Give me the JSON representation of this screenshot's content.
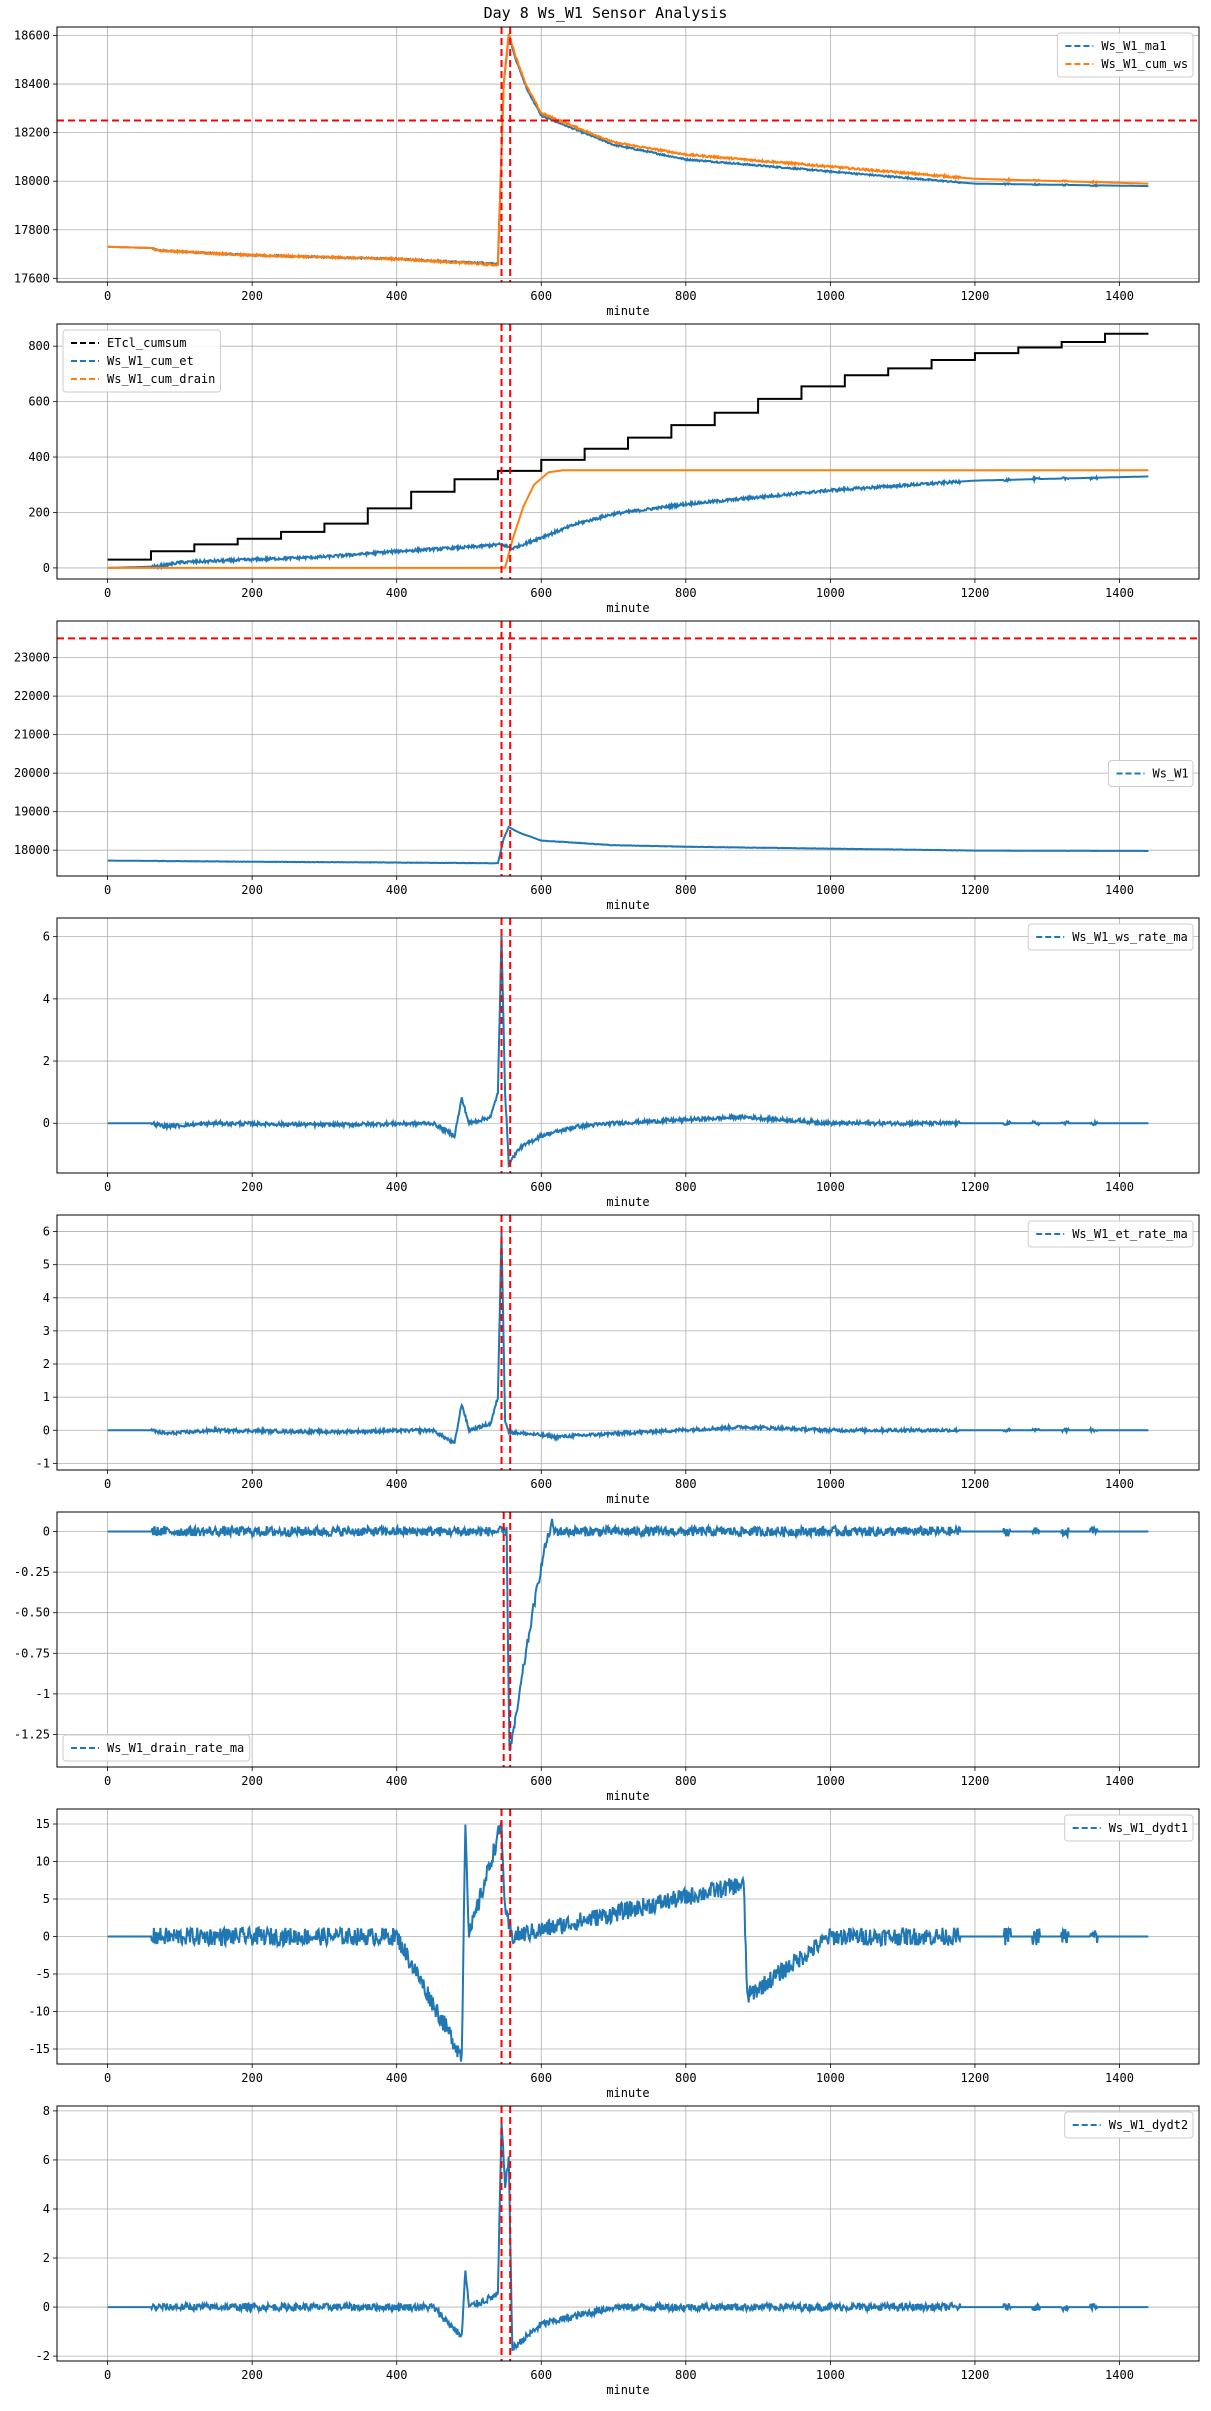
{
  "figure": {
    "title": "Day 8 Ws_W1 Sensor Analysis"
  },
  "colors": {
    "blue": "#1f77b4",
    "orange": "#ff7f0e",
    "black": "#000000",
    "red": "#ff0000",
    "grid": "#b0b0b0"
  },
  "chart_data": [
    {
      "type": "line",
      "xlabel": "minute",
      "xlim": [
        -70,
        1510
      ],
      "ylim": [
        17585,
        18635
      ],
      "xticks": [
        0,
        200,
        400,
        600,
        800,
        1000,
        1200,
        1400
      ],
      "yticks": [
        17600,
        17800,
        18000,
        18200,
        18400,
        18600
      ],
      "legend_position": "top-right",
      "grid": true,
      "vlines": [
        545,
        557
      ],
      "hlines": [
        18250
      ],
      "series": [
        {
          "name": "Ws_W1_ma1",
          "color": "blue",
          "noise": 3,
          "points": [
            [
              0,
              17730
            ],
            [
              60,
              17725
            ],
            [
              70,
              17715
            ],
            [
              200,
              17695
            ],
            [
              400,
              17680
            ],
            [
              540,
              17660
            ],
            [
              548,
              18400
            ],
            [
              555,
              18600
            ],
            [
              565,
              18500
            ],
            [
              580,
              18380
            ],
            [
              600,
              18270
            ],
            [
              700,
              18150
            ],
            [
              800,
              18090
            ],
            [
              1000,
              18040
            ],
            [
              1200,
              17990
            ],
            [
              1440,
              17980
            ]
          ]
        },
        {
          "name": "Ws_W1_cum_ws",
          "color": "orange",
          "noise": 4,
          "points": [
            [
              0,
              17730
            ],
            [
              60,
              17725
            ],
            [
              70,
              17715
            ],
            [
              200,
              17695
            ],
            [
              400,
              17680
            ],
            [
              540,
              17655
            ],
            [
              548,
              18400
            ],
            [
              555,
              18610
            ],
            [
              565,
              18510
            ],
            [
              580,
              18390
            ],
            [
              600,
              18280
            ],
            [
              700,
              18160
            ],
            [
              800,
              18110
            ],
            [
              1000,
              18060
            ],
            [
              1200,
              18010
            ],
            [
              1440,
              17990
            ]
          ]
        }
      ]
    },
    {
      "type": "line",
      "xlabel": "minute",
      "xlim": [
        -70,
        1510
      ],
      "ylim": [
        -40,
        880
      ],
      "xticks": [
        0,
        200,
        400,
        600,
        800,
        1000,
        1200,
        1400
      ],
      "yticks": [
        0,
        200,
        400,
        600,
        800
      ],
      "legend_position": "top-left",
      "grid": true,
      "vlines": [
        545,
        557
      ],
      "hlines": [],
      "series": [
        {
          "name": "ETcl_cumsum",
          "color": "black",
          "step": true,
          "noise": 0,
          "points": [
            [
              0,
              30
            ],
            [
              60,
              60
            ],
            [
              120,
              85
            ],
            [
              180,
              105
            ],
            [
              240,
              130
            ],
            [
              300,
              160
            ],
            [
              360,
              215
            ],
            [
              420,
              275
            ],
            [
              480,
              320
            ],
            [
              540,
              350
            ],
            [
              600,
              390
            ],
            [
              660,
              430
            ],
            [
              720,
              470
            ],
            [
              780,
              515
            ],
            [
              840,
              560
            ],
            [
              900,
              610
            ],
            [
              960,
              655
            ],
            [
              1020,
              695
            ],
            [
              1080,
              720
            ],
            [
              1140,
              750
            ],
            [
              1200,
              775
            ],
            [
              1260,
              795
            ],
            [
              1320,
              815
            ],
            [
              1380,
              845
            ],
            [
              1440,
              845
            ]
          ]
        },
        {
          "name": "Ws_W1_cum_et",
          "color": "blue",
          "noise": 5,
          "points": [
            [
              0,
              0
            ],
            [
              70,
              5
            ],
            [
              100,
              20
            ],
            [
              200,
              30
            ],
            [
              300,
              40
            ],
            [
              400,
              60
            ],
            [
              500,
              75
            ],
            [
              545,
              85
            ],
            [
              560,
              70
            ],
            [
              600,
              110
            ],
            [
              650,
              160
            ],
            [
              700,
              195
            ],
            [
              800,
              230
            ],
            [
              1000,
              280
            ],
            [
              1200,
              315
            ],
            [
              1440,
              330
            ]
          ]
        },
        {
          "name": "Ws_W1_cum_drain",
          "color": "orange",
          "noise": 0,
          "points": [
            [
              0,
              0
            ],
            [
              550,
              0
            ],
            [
              560,
              100
            ],
            [
              575,
              220
            ],
            [
              590,
              300
            ],
            [
              610,
              345
            ],
            [
              630,
              352
            ],
            [
              1440,
              352
            ]
          ]
        }
      ]
    },
    {
      "type": "line",
      "xlabel": "minute",
      "xlim": [
        -70,
        1510
      ],
      "ylim": [
        17330,
        23950
      ],
      "xticks": [
        0,
        200,
        400,
        600,
        800,
        1000,
        1200,
        1400
      ],
      "yticks": [
        18000,
        19000,
        20000,
        21000,
        22000,
        23000
      ],
      "legend_position": "center-right",
      "grid": true,
      "vlines": [
        545,
        557
      ],
      "hlines": [
        23500
      ],
      "series": [
        {
          "name": "Ws_W1",
          "color": "blue",
          "noise": 5,
          "points": [
            [
              0,
              17730
            ],
            [
              70,
              17720
            ],
            [
              200,
              17700
            ],
            [
              400,
              17680
            ],
            [
              540,
              17660
            ],
            [
              548,
              18300
            ],
            [
              555,
              18600
            ],
            [
              570,
              18450
            ],
            [
              600,
              18250
            ],
            [
              700,
              18130
            ],
            [
              800,
              18090
            ],
            [
              1000,
              18040
            ],
            [
              1200,
              17990
            ],
            [
              1440,
              17980
            ]
          ]
        }
      ]
    },
    {
      "type": "line",
      "xlabel": "minute",
      "xlim": [
        -70,
        1510
      ],
      "ylim": [
        -1.6,
        6.6
      ],
      "xticks": [
        0,
        200,
        400,
        600,
        800,
        1000,
        1200,
        1400
      ],
      "yticks": [
        0,
        2,
        4,
        6
      ],
      "legend_position": "top-right",
      "grid": true,
      "vlines": [
        545,
        557
      ],
      "hlines": [],
      "series": [
        {
          "name": "Ws_W1_ws_rate_ma",
          "color": "blue",
          "noise": 0.06,
          "points": [
            [
              0,
              0
            ],
            [
              60,
              0
            ],
            [
              80,
              -0.1
            ],
            [
              150,
              0
            ],
            [
              300,
              -0.05
            ],
            [
              450,
              0
            ],
            [
              480,
              -0.4
            ],
            [
              490,
              0.8
            ],
            [
              500,
              0
            ],
            [
              530,
              0.2
            ],
            [
              540,
              1.0
            ],
            [
              545,
              6.0
            ],
            [
              550,
              1.0
            ],
            [
              555,
              -1.3
            ],
            [
              570,
              -0.8
            ],
            [
              600,
              -0.4
            ],
            [
              650,
              -0.1
            ],
            [
              700,
              0
            ],
            [
              880,
              0.2
            ],
            [
              1000,
              0
            ],
            [
              1440,
              0
            ]
          ]
        }
      ]
    },
    {
      "type": "line",
      "xlabel": "minute",
      "xlim": [
        -70,
        1510
      ],
      "ylim": [
        -1.2,
        6.5
      ],
      "xticks": [
        0,
        200,
        400,
        600,
        800,
        1000,
        1200,
        1400
      ],
      "yticks": [
        -1,
        0,
        1,
        2,
        3,
        4,
        5,
        6
      ],
      "legend_position": "top-right",
      "grid": true,
      "vlines": [
        545,
        557
      ],
      "hlines": [],
      "series": [
        {
          "name": "Ws_W1_et_rate_ma",
          "color": "blue",
          "noise": 0.05,
          "points": [
            [
              0,
              0
            ],
            [
              60,
              0
            ],
            [
              80,
              -0.1
            ],
            [
              150,
              0
            ],
            [
              300,
              -0.05
            ],
            [
              450,
              0
            ],
            [
              480,
              -0.4
            ],
            [
              490,
              0.8
            ],
            [
              500,
              0
            ],
            [
              530,
              0.2
            ],
            [
              540,
              1.0
            ],
            [
              545,
              6.0
            ],
            [
              550,
              0.3
            ],
            [
              555,
              -0.05
            ],
            [
              600,
              -0.15
            ],
            [
              620,
              -0.2
            ],
            [
              700,
              -0.1
            ],
            [
              880,
              0.1
            ],
            [
              1000,
              0
            ],
            [
              1440,
              0
            ]
          ]
        }
      ]
    },
    {
      "type": "line",
      "xlabel": "minute",
      "xlim": [
        -70,
        1510
      ],
      "ylim": [
        -1.45,
        0.12
      ],
      "xticks": [
        0,
        200,
        400,
        600,
        800,
        1000,
        1200,
        1400
      ],
      "yticks": [
        -1.25,
        -1.0,
        -0.75,
        -0.5,
        -0.25,
        0.0
      ],
      "legend_position": "bottom-left",
      "grid": true,
      "vlines": [
        548,
        557
      ],
      "hlines": [],
      "series": [
        {
          "name": "Ws_W1_drain_rate_ma",
          "color": "blue",
          "noise": 0.03,
          "points": [
            [
              0,
              0
            ],
            [
              552,
              0
            ],
            [
              556,
              -1.35
            ],
            [
              565,
              -1.15
            ],
            [
              575,
              -0.85
            ],
            [
              590,
              -0.45
            ],
            [
              605,
              -0.1
            ],
            [
              615,
              0.05
            ],
            [
              618,
              0
            ],
            [
              1440,
              0
            ]
          ]
        }
      ]
    },
    {
      "type": "line",
      "xlabel": "minute",
      "xlim": [
        -70,
        1510
      ],
      "ylim": [
        -17,
        17
      ],
      "xticks": [
        0,
        200,
        400,
        600,
        800,
        1000,
        1200,
        1400
      ],
      "yticks": [
        -15,
        -10,
        -5,
        0,
        5,
        10,
        15
      ],
      "legend_position": "top-right",
      "grid": true,
      "vlines": [
        545,
        557
      ],
      "hlines": [],
      "series": [
        {
          "name": "Ws_W1_dydt1",
          "color": "blue",
          "noise": 1.2,
          "points": [
            [
              0,
              0
            ],
            [
              70,
              0
            ],
            [
              140,
              0
            ],
            [
              200,
              0
            ],
            [
              400,
              0
            ],
            [
              490,
              -16
            ],
            [
              495,
              16
            ],
            [
              500,
              0
            ],
            [
              545,
              15
            ],
            [
              550,
              3
            ],
            [
              560,
              0
            ],
            [
              880,
              7
            ],
            [
              885,
              -8
            ],
            [
              1000,
              0
            ],
            [
              1170,
              0
            ],
            [
              1440,
              0
            ]
          ]
        }
      ]
    },
    {
      "type": "line",
      "xlabel": "minute",
      "xlim": [
        -70,
        1510
      ],
      "ylim": [
        -2.2,
        8.2
      ],
      "xticks": [
        0,
        200,
        400,
        600,
        800,
        1000,
        1200,
        1400
      ],
      "yticks": [
        -2,
        0,
        2,
        4,
        6,
        8
      ],
      "legend_position": "top-right",
      "grid": true,
      "vlines": [
        545,
        557
      ],
      "hlines": [],
      "series": [
        {
          "name": "Ws_W1_dydt2",
          "color": "blue",
          "noise": 0.15,
          "points": [
            [
              0,
              0
            ],
            [
              70,
              0
            ],
            [
              200,
              0
            ],
            [
              450,
              0
            ],
            [
              490,
              -1.2
            ],
            [
              495,
              1.5
            ],
            [
              500,
              0
            ],
            [
              540,
              0.5
            ],
            [
              545,
              7.5
            ],
            [
              550,
              5.0
            ],
            [
              555,
              6.0
            ],
            [
              560,
              -1.7
            ],
            [
              600,
              -0.7
            ],
            [
              700,
              0
            ],
            [
              1440,
              0
            ]
          ]
        }
      ]
    }
  ]
}
